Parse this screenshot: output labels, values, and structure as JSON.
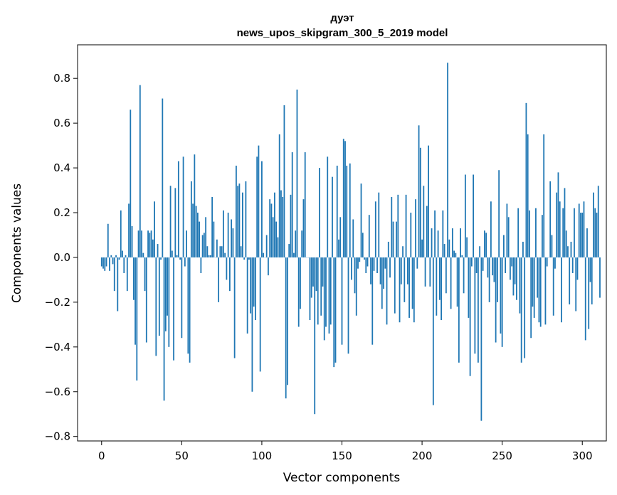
{
  "chart_data": {
    "type": "bar",
    "title": "дуэт",
    "subtitle": "news_upos_skipgram_300_5_2019 model",
    "xlabel": "Vector components",
    "ylabel": "Components values",
    "xlim": [
      -15,
      315
    ],
    "ylim": [
      -0.82,
      0.95
    ],
    "xticks": [
      0,
      50,
      100,
      150,
      200,
      250,
      300
    ],
    "yticks": [
      -0.8,
      -0.6,
      -0.4,
      -0.2,
      0.0,
      0.2,
      0.4,
      0.6,
      0.8
    ],
    "ytick_labels": [
      "−0.8",
      "−0.6",
      "−0.4",
      "−0.2",
      "0.0",
      "0.2",
      "0.4",
      "0.6",
      "0.8"
    ],
    "bar_color": "#1f77b4",
    "grid": false,
    "values": [
      -0.04,
      -0.05,
      -0.06,
      -0.04,
      0.15,
      -0.06,
      0.01,
      -0.03,
      -0.15,
      0.01,
      -0.24,
      -0.01,
      0.21,
      0.03,
      -0.07,
      0.01,
      -0.15,
      0.24,
      0.66,
      0.14,
      -0.19,
      -0.39,
      -0.55,
      0.12,
      0.77,
      0.12,
      0.02,
      -0.15,
      -0.38,
      0.12,
      0.11,
      0.12,
      0.08,
      0.25,
      -0.44,
      0.06,
      -0.35,
      -0.01,
      0.71,
      -0.64,
      -0.33,
      -0.26,
      -0.4,
      0.32,
      0.03,
      -0.46,
      0.31,
      0.01,
      0.43,
      -0.01,
      -0.36,
      0.45,
      -0.04,
      0.12,
      -0.43,
      -0.47,
      0.34,
      0.24,
      0.46,
      0.23,
      0.2,
      0.16,
      -0.07,
      0.1,
      0.11,
      0.18,
      0.05,
      0.01,
      0.01,
      0.27,
      0.16,
      0.0,
      0.08,
      -0.2,
      0.05,
      0.05,
      0.21,
      0.02,
      -0.1,
      0.2,
      -0.15,
      0.17,
      0.13,
      -0.45,
      0.41,
      0.32,
      0.33,
      0.05,
      0.29,
      -0.01,
      0.34,
      -0.34,
      -0.01,
      -0.25,
      -0.6,
      -0.22,
      -0.28,
      0.45,
      0.5,
      -0.51,
      0.43,
      0.02,
      0.0,
      0.1,
      -0.08,
      0.26,
      0.24,
      0.18,
      0.29,
      0.16,
      0.09,
      0.55,
      0.3,
      0.27,
      0.68,
      -0.63,
      -0.57,
      0.06,
      0.28,
      0.47,
      0.02,
      0.12,
      0.75,
      -0.31,
      -0.23,
      0.12,
      0.26,
      0.47,
      0.0,
      0.0,
      -0.28,
      -0.18,
      -0.13,
      -0.7,
      -0.15,
      -0.3,
      0.4,
      -0.26,
      -0.13,
      -0.37,
      -0.31,
      0.45,
      -0.34,
      -0.3,
      0.36,
      -0.49,
      -0.47,
      0.41,
      0.08,
      0.18,
      -0.39,
      0.53,
      0.52,
      0.41,
      -0.43,
      0.42,
      -0.1,
      0.17,
      -0.16,
      -0.26,
      -0.05,
      -0.02,
      0.33,
      0.11,
      -0.01,
      -0.07,
      -0.04,
      0.19,
      -0.12,
      -0.39,
      -0.06,
      0.25,
      -0.07,
      0.29,
      -0.12,
      -0.23,
      -0.14,
      -0.05,
      -0.3,
      0.07,
      -0.09,
      0.27,
      0.16,
      -0.25,
      0.16,
      0.28,
      -0.29,
      -0.12,
      0.05,
      -0.2,
      0.28,
      -0.12,
      -0.27,
      0.2,
      -0.23,
      -0.29,
      0.26,
      -0.05,
      0.59,
      0.49,
      0.08,
      0.32,
      -0.13,
      0.23,
      0.5,
      -0.13,
      0.13,
      -0.66,
      0.21,
      -0.26,
      0.12,
      -0.19,
      -0.28,
      0.21,
      0.06,
      -0.16,
      0.87,
      0.08,
      -0.23,
      0.13,
      0.03,
      0.02,
      -0.22,
      -0.47,
      0.13,
      0.01,
      -0.16,
      0.37,
      0.09,
      -0.27,
      -0.53,
      -0.04,
      0.37,
      -0.43,
      -0.07,
      -0.47,
      0.05,
      -0.73,
      -0.06,
      0.12,
      0.11,
      -0.09,
      -0.2,
      0.25,
      -0.08,
      -0.11,
      -0.38,
      -0.2,
      0.39,
      -0.34,
      -0.4,
      0.1,
      -0.07,
      0.24,
      0.18,
      -0.1,
      -0.04,
      -0.17,
      -0.12,
      -0.19,
      0.22,
      -0.25,
      -0.47,
      0.07,
      -0.45,
      0.69,
      0.55,
      0.21,
      -0.36,
      -0.22,
      -0.27,
      0.22,
      -0.18,
      -0.29,
      -0.31,
      0.19,
      0.55,
      -0.3,
      -0.04,
      0.0,
      0.34,
      0.1,
      -0.26,
      -0.05,
      0.29,
      0.38,
      0.25,
      -0.29,
      0.22,
      0.31,
      0.12,
      0.05,
      -0.21,
      0.07,
      -0.07,
      0.22,
      -0.24,
      -0.1,
      0.24,
      0.2,
      0.2,
      0.25,
      -0.37,
      0.13,
      -0.32,
      -0.11,
      -0.21,
      0.29,
      0.22,
      0.2,
      0.32,
      -0.18
    ]
  }
}
